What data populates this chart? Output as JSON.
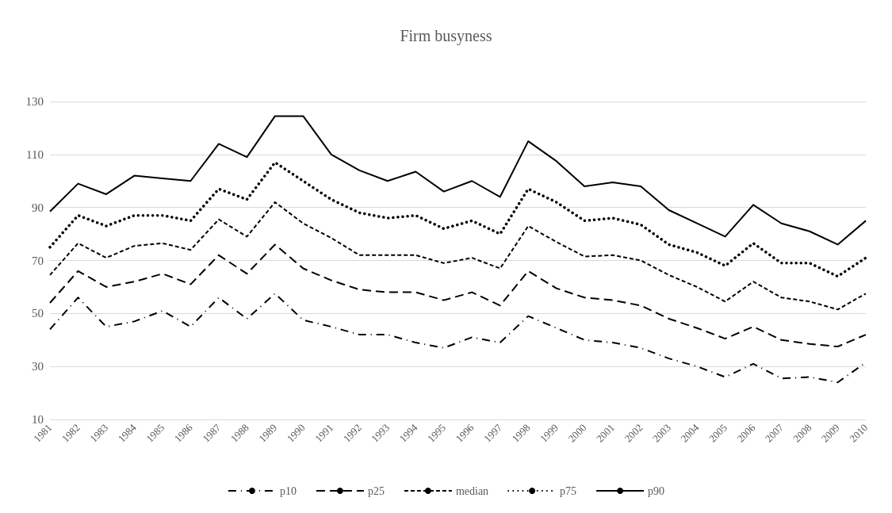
{
  "chart_data": {
    "type": "line",
    "title": "Firm busyness",
    "categories": [
      "1981",
      "1982",
      "1983",
      "1984",
      "1985",
      "1986",
      "1987",
      "1988",
      "1989",
      "1990",
      "1991",
      "1992",
      "1993",
      "1994",
      "1995",
      "1996",
      "1997",
      "1998",
      "1999",
      "2000",
      "2001",
      "2002",
      "2003",
      "2004",
      "2005",
      "2006",
      "2007",
      "2008",
      "2009",
      "2010"
    ],
    "series": [
      {
        "name": "p10",
        "color": "#000000",
        "line_style": "dashdot",
        "values": [
          44,
          56,
          45,
          47,
          51,
          45,
          56,
          48,
          57.5,
          47.5,
          45,
          42,
          42,
          39,
          37,
          41,
          39,
          49,
          44.5,
          40,
          39,
          37,
          33,
          30,
          26,
          31,
          25.5,
          26,
          24,
          31.5
        ]
      },
      {
        "name": "p25",
        "color": "#000000",
        "line_style": "longdash",
        "values": [
          54,
          66,
          60,
          62,
          65,
          61,
          72,
          65,
          76,
          67,
          62.5,
          59,
          58,
          58,
          55,
          58,
          53,
          66,
          59.5,
          56,
          55,
          53,
          48,
          44.5,
          40.5,
          45,
          40,
          38.5,
          37.5,
          42
        ]
      },
      {
        "name": "median",
        "color": "#000000",
        "line_style": "dashed",
        "values": [
          64.5,
          76.5,
          71,
          75.5,
          76.5,
          74,
          85.5,
          79,
          92,
          84,
          78.5,
          72,
          72,
          72,
          69,
          71,
          67,
          83,
          77,
          71.5,
          72,
          70,
          64.5,
          60,
          54.5,
          62,
          56,
          54.5,
          51.5,
          57.5
        ]
      },
      {
        "name": "p75",
        "color": "#000000",
        "line_style": "dotted",
        "values": [
          75,
          87,
          83,
          87,
          87,
          85,
          97,
          93,
          107,
          100,
          93,
          88,
          86,
          87,
          82,
          85,
          80,
          97,
          92,
          85,
          86,
          83.5,
          76,
          73,
          68,
          76.5,
          69,
          69,
          64,
          71
        ]
      },
      {
        "name": "p90",
        "color": "#000000",
        "line_style": "solid",
        "values": [
          88.5,
          99,
          95,
          102,
          101,
          100,
          114,
          109,
          124.5,
          124.5,
          110,
          104,
          100,
          103.5,
          96,
          100,
          94,
          115,
          107.5,
          98,
          99.5,
          98,
          89,
          84,
          79,
          91,
          84,
          81,
          76,
          85
        ]
      }
    ],
    "ylim": [
      10,
      130
    ],
    "yticks": [
      10,
      30,
      50,
      70,
      90,
      110,
      130
    ],
    "grid": "y",
    "legend": "bottom",
    "marker": "none"
  }
}
